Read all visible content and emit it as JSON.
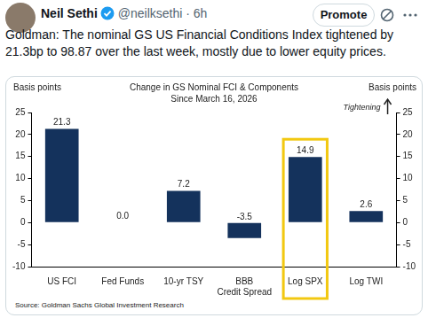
{
  "tweet": {
    "author": "Neil Sethi",
    "meta": "@neilksethi · 6h",
    "button": "Promote",
    "text": "Goldman: The nominal GS US Financial Conditions Index tightened by 21.3bp to 98.87 over the last week, mostly due to lower equity prices."
  },
  "chart_data": {
    "type": "bar",
    "title": "Change in GS Nominal FCI & Components",
    "subtitle": "Since March 16, 2026",
    "y_label": "Basis points",
    "y2_label": "Basis points",
    "categories": [
      "US FCI",
      "Fed Funds",
      "10-yr TSY",
      [
        "BBB",
        "Credit Spread"
      ],
      "Log SPX",
      "Log TWI"
    ],
    "values": [
      21.3,
      0.0,
      7.2,
      -3.5,
      14.9,
      2.6
    ],
    "value_labels": [
      "21.3",
      "0.0",
      "7.2",
      "-3.5",
      "14.9",
      "2.6"
    ],
    "data_labels": true,
    "color": "#14325c",
    "ylim": [
      -10,
      25
    ],
    "yticks": [
      -10,
      -5,
      0,
      5,
      10,
      15,
      20,
      25
    ],
    "y2lim": [
      -10,
      25
    ],
    "y2ticks": [
      -10,
      -5,
      0,
      5,
      10,
      15,
      20,
      25
    ],
    "grid": false,
    "annotations": [
      {
        "text": "Tightening",
        "arrow": "up"
      },
      {
        "category": "Log SPX",
        "box_color": "#f2c811"
      }
    ],
    "source": "Source: Goldman Sachs Global Investment Research"
  }
}
